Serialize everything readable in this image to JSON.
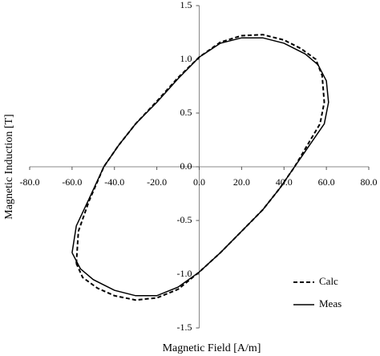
{
  "chart_data": {
    "type": "line",
    "x_label": "Magnetic Field [A/m]",
    "y_label": "Magnetic Induction [T]",
    "xlim": [
      -80,
      80
    ],
    "ylim": [
      -1.5,
      1.5
    ],
    "xticks": [
      {
        "value": -80,
        "label": "-80.0"
      },
      {
        "value": -60,
        "label": "-60.0"
      },
      {
        "value": -40,
        "label": "-40.0"
      },
      {
        "value": -20,
        "label": "-20.0"
      },
      {
        "value": 0,
        "label": "0.0"
      },
      {
        "value": 20,
        "label": "20.0"
      },
      {
        "value": 40,
        "label": "40.0"
      },
      {
        "value": 60,
        "label": "60.0"
      },
      {
        "value": 80,
        "label": "80.0"
      }
    ],
    "yticks": [
      -1.5,
      {
        "value": -1,
        "label": "-1.0"
      },
      -0.5,
      {
        "value": 0,
        "label": "0.0"
      },
      0.5,
      {
        "value": 1,
        "label": "1.0"
      },
      1.5
    ],
    "legend_position": "lower right",
    "series": [
      {
        "name": "Calc",
        "color": "#000000",
        "linestyle": "dashed",
        "x": [
          -58,
          -57,
          -52,
          -45,
          -38,
          -30,
          -20,
          -10,
          0,
          10,
          20,
          30,
          40,
          48,
          55,
          58,
          59,
          57,
          51,
          45,
          38,
          30,
          20,
          10,
          0,
          -10,
          -20,
          -30,
          -40,
          -48,
          -55,
          -58
        ],
        "values": [
          -0.9,
          -0.6,
          -0.32,
          0,
          0.2,
          0.4,
          0.61,
          0.83,
          1.02,
          1.16,
          1.22,
          1.23,
          1.18,
          1.1,
          1.0,
          0.85,
          0.6,
          0.4,
          0.2,
          0,
          -0.2,
          -0.4,
          -0.6,
          -0.8,
          -0.98,
          -1.14,
          -1.22,
          -1.24,
          -1.2,
          -1.13,
          -1.03,
          -0.9
        ]
      },
      {
        "name": "Meas",
        "color": "#000000",
        "linestyle": "solid",
        "x": [
          -60,
          -58,
          -52,
          -45,
          -38,
          -30,
          -20,
          -10,
          0,
          10,
          20,
          30,
          40,
          50,
          56,
          60,
          61,
          59,
          52,
          45,
          38,
          30,
          20,
          10,
          0,
          -10,
          -20,
          -30,
          -40,
          -50,
          -56,
          -60
        ],
        "values": [
          -0.8,
          -0.55,
          -0.3,
          0,
          0.2,
          0.4,
          0.6,
          0.82,
          1.02,
          1.15,
          1.2,
          1.2,
          1.15,
          1.05,
          0.95,
          0.8,
          0.6,
          0.4,
          0.2,
          0,
          -0.2,
          -0.4,
          -0.6,
          -0.8,
          -0.98,
          -1.12,
          -1.2,
          -1.2,
          -1.15,
          -1.05,
          -0.95,
          -0.8
        ]
      }
    ]
  }
}
